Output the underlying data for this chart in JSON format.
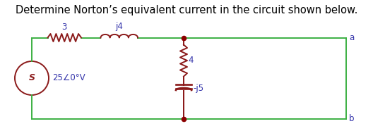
{
  "title": "Determine Norton’s equivalent current in the circuit shown below.",
  "title_fontsize": 10.5,
  "wire_color": "#3cb043",
  "component_color": "#8b1a1a",
  "label_color": "#3333aa",
  "dot_color": "#8b0000",
  "background": "#ffffff",
  "fig_width": 5.28,
  "fig_height": 1.96,
  "dpi": 100,
  "source_label": "25∠0°V",
  "resistor_top_label": "3",
  "inductor_label": "j4",
  "resistor_mid_label": "4",
  "capacitor_label": "-j5",
  "terminal_a": "a",
  "terminal_b": "b"
}
